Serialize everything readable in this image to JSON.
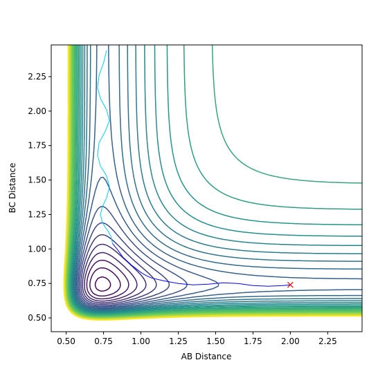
{
  "chart_data": {
    "type": "contour",
    "title": "",
    "xlabel": "AB Distance",
    "ylabel": "BC Distance",
    "xlim": [
      0.4,
      2.48
    ],
    "ylim": [
      0.4,
      2.48
    ],
    "xticks": [
      "0.50",
      "0.75",
      "1.00",
      "1.25",
      "1.50",
      "1.75",
      "2.00",
      "2.25"
    ],
    "yticks": [
      "0.50",
      "0.75",
      "1.00",
      "1.25",
      "1.50",
      "1.75",
      "2.00",
      "2.25"
    ],
    "grid": false,
    "colormap": [
      "#440154",
      "#3b528b",
      "#21918c",
      "#5ec962",
      "#fde725"
    ],
    "contour_level_count": 30,
    "series": [
      {
        "color": "#0000ff",
        "points": [
          [
            0.81,
            1.04
          ],
          [
            0.8,
            1.09
          ],
          [
            0.78,
            1.13
          ],
          [
            0.76,
            1.16
          ],
          [
            0.74,
            1.2
          ],
          [
            0.73,
            1.25
          ],
          [
            0.74,
            1.3
          ],
          [
            0.77,
            1.37
          ],
          [
            0.79,
            1.45
          ],
          [
            0.77,
            1.53
          ],
          [
            0.73,
            1.6
          ],
          [
            0.71,
            1.68
          ],
          [
            0.72,
            1.77
          ],
          [
            0.76,
            1.85
          ],
          [
            0.79,
            1.93
          ],
          [
            0.77,
            2.01
          ],
          [
            0.73,
            2.09
          ],
          [
            0.71,
            2.17
          ],
          [
            0.72,
            2.26
          ],
          [
            0.75,
            2.35
          ],
          [
            0.77,
            2.44
          ]
        ]
      },
      {
        "color": "#0000ff",
        "points": [
          [
            0.81,
            1.04
          ],
          [
            0.84,
            1.0
          ],
          [
            0.88,
            0.94
          ],
          [
            0.94,
            0.88
          ],
          [
            1.0,
            0.83
          ],
          [
            1.03,
            0.81
          ],
          [
            1.07,
            0.79
          ],
          [
            1.15,
            0.77
          ],
          [
            1.25,
            0.75
          ],
          [
            1.35,
            0.74
          ],
          [
            1.45,
            0.745
          ],
          [
            1.55,
            0.755
          ],
          [
            1.65,
            0.75
          ],
          [
            1.75,
            0.735
          ],
          [
            1.85,
            0.73
          ],
          [
            1.95,
            0.735
          ],
          [
            2.0,
            0.74
          ]
        ]
      }
    ],
    "markers": [
      {
        "x": 2.0,
        "y": 0.74,
        "symbol": "x",
        "color": "#ff0000"
      }
    ]
  }
}
